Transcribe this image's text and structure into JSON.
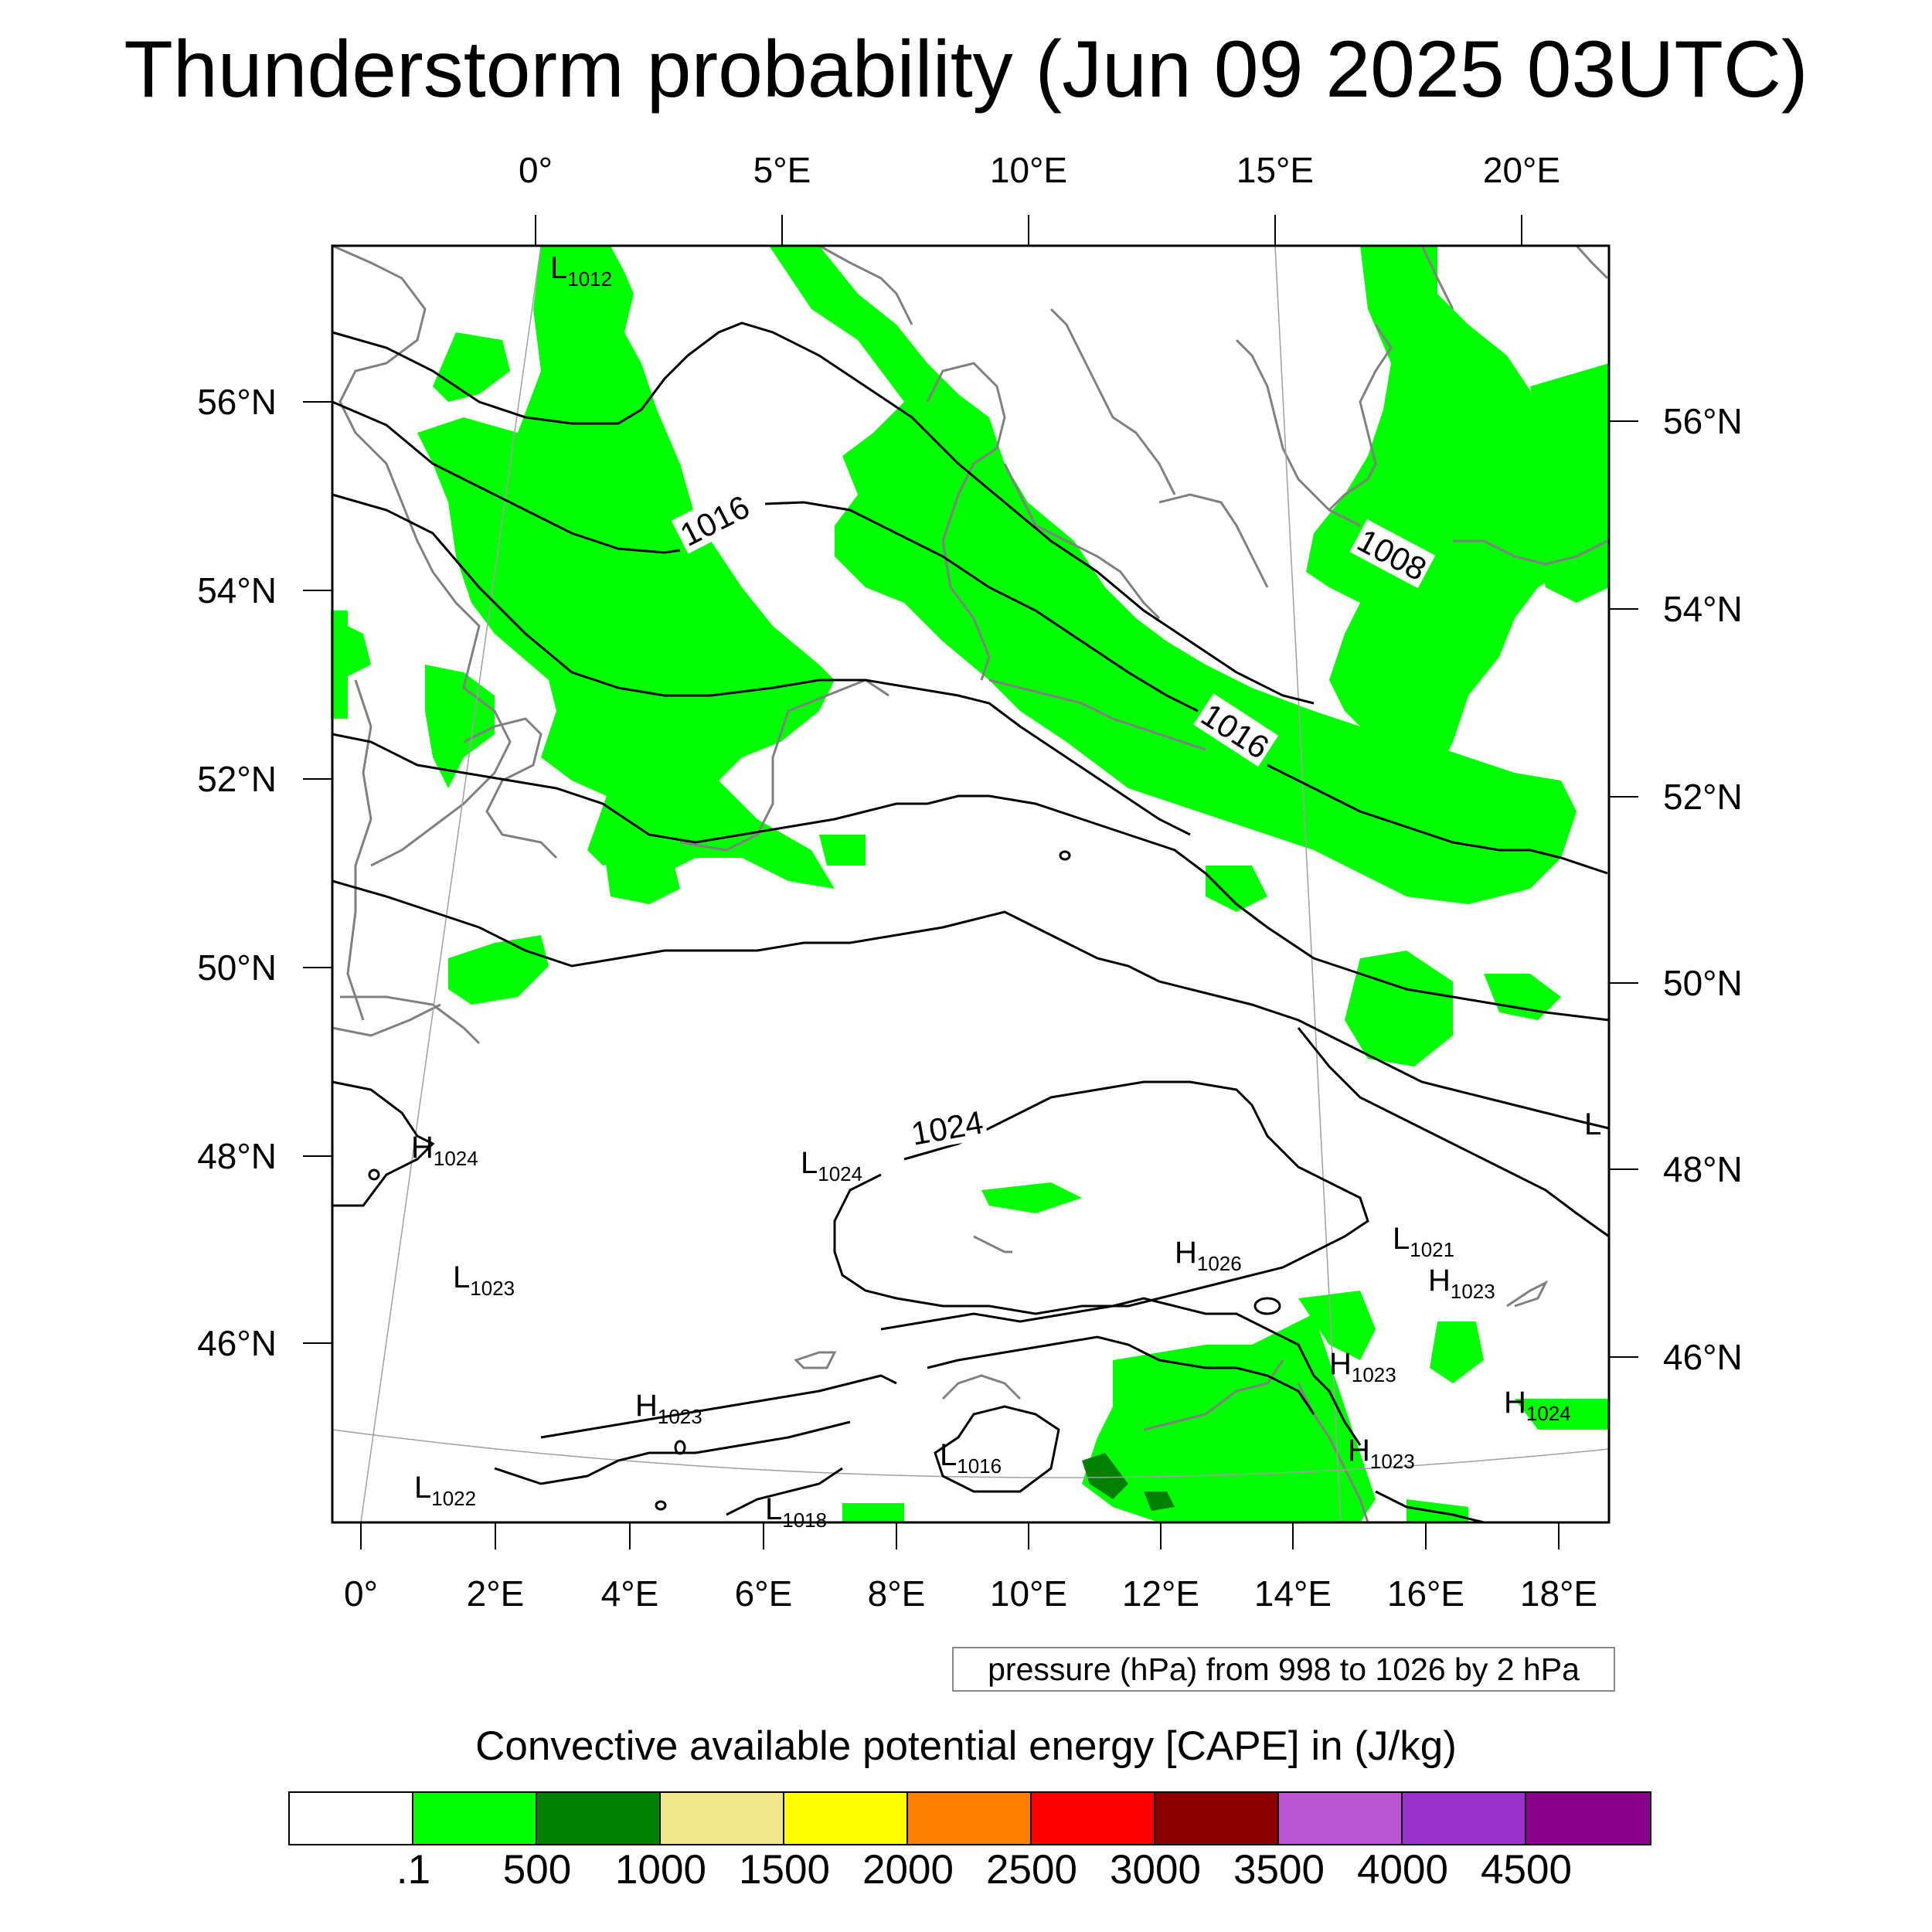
{
  "title": "Thunderstorm probability (Jun 09 2025 03UTC)",
  "top_lon_labels": [
    "0°",
    "5°E",
    "10°E",
    "15°E",
    "20°E"
  ],
  "bottom_lon_labels": [
    "0°",
    "2°E",
    "4°E",
    "6°E",
    "8°E",
    "10°E",
    "12°E",
    "14°E",
    "16°E",
    "18°E"
  ],
  "left_lat_labels": [
    "56°N",
    "54°N",
    "52°N",
    "50°N",
    "48°N",
    "46°N"
  ],
  "right_lat_labels": [
    "56°N",
    "54°N",
    "52°N",
    "50°N",
    "48°N",
    "46°N"
  ],
  "pressure_labels": {
    "p1016_a": "1016",
    "p1016_b": "1016",
    "p1008": "1008",
    "p1024": "1024"
  },
  "pressure_centers": [
    {
      "letter": "L",
      "value": "1012"
    },
    {
      "letter": "H",
      "value": "1024"
    },
    {
      "letter": "L",
      "value": "1023"
    },
    {
      "letter": "L",
      "value": "1024"
    },
    {
      "letter": "H",
      "value": "1026"
    },
    {
      "letter": "L",
      "value": "1021"
    },
    {
      "letter": "H",
      "value": "1023"
    },
    {
      "letter": "H",
      "value": "1023"
    },
    {
      "letter": "H",
      "value": "1023"
    },
    {
      "letter": "H",
      "value": "1024"
    },
    {
      "letter": "H",
      "value": "1023"
    },
    {
      "letter": "L",
      "value": "1016"
    },
    {
      "letter": "L",
      "value": "1022"
    },
    {
      "letter": "L",
      "value": "1018"
    },
    {
      "letter": "L",
      "value": ""
    }
  ],
  "pressure_note": "pressure (hPa) from 998 to 1026 by 2 hPa",
  "colorbar": {
    "title": "Convective available potential energy [CAPE] in (J/kg)",
    "colors": [
      "#ffffff",
      "#00ff00",
      "#007f00",
      "#f0e68c",
      "#ffff00",
      "#ff8000",
      "#ff0000",
      "#8b0000",
      "#ba55d3",
      "#9932cc",
      "#8b008b"
    ],
    "labels": [
      ".1",
      "500",
      "1000",
      "1500",
      "2000",
      "2500",
      "3000",
      "3500",
      "4000",
      "4500"
    ]
  },
  "legend_colors": {
    "cape_low": "#00ff00",
    "cape_mid": "#007f00",
    "coast": "#808080",
    "isobar": "#000000"
  }
}
